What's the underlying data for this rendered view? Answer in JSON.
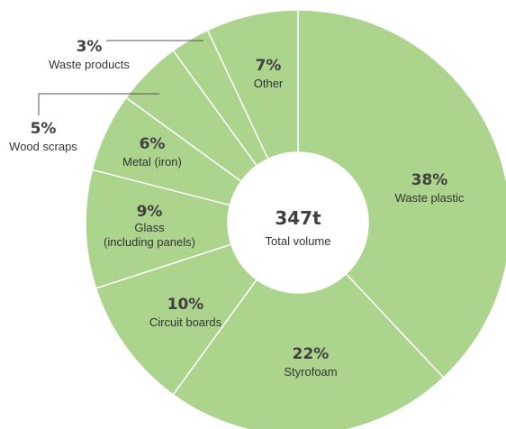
{
  "chart_data": {
    "type": "pie",
    "subtype": "donut",
    "slices": [
      {
        "label": "Waste plastic",
        "value": 38,
        "display": "38%"
      },
      {
        "label": "Styrofoam",
        "value": 22,
        "display": "22%"
      },
      {
        "label": "Circuit boards",
        "value": 10,
        "display": "10%"
      },
      {
        "label": "Glass\n(including panels)",
        "value": 9,
        "display": "9%"
      },
      {
        "label": "Metal (iron)",
        "value": 6,
        "display": "6%"
      },
      {
        "label": "Wood scraps",
        "value": 5,
        "display": "5%"
      },
      {
        "label": "Waste products",
        "value": 3,
        "display": "3%"
      },
      {
        "label": "Other",
        "value": 7,
        "display": "7%"
      }
    ],
    "center": {
      "value": "347t",
      "label": "Total volume"
    }
  },
  "colors": {
    "slice_fill": "#acd48c",
    "slice_border": "#ffffff",
    "center_fill": "#ffffff",
    "text": "#333333",
    "leader_line": "#555555"
  }
}
